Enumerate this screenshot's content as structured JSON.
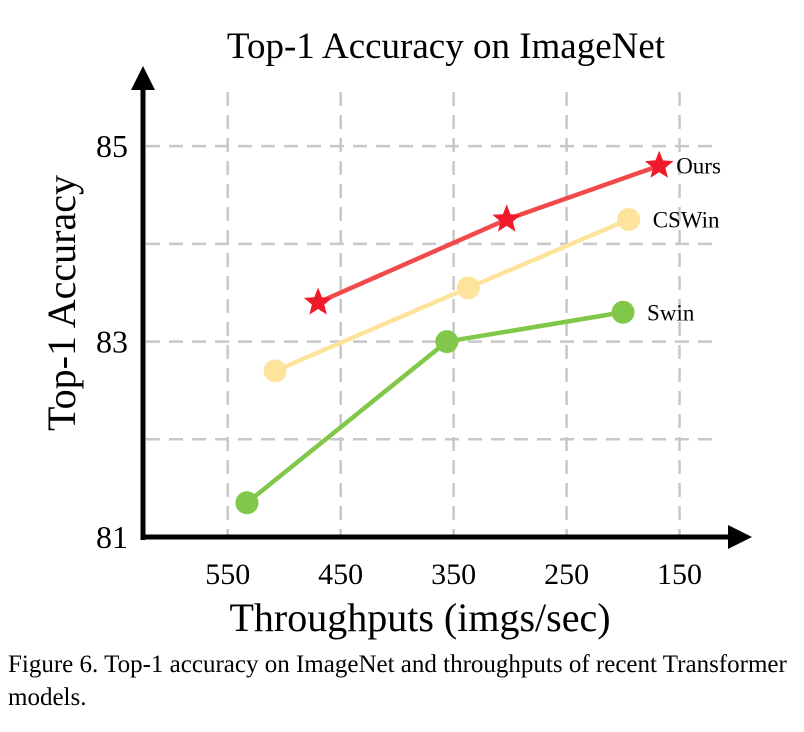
{
  "chart_data": {
    "type": "line",
    "title": "Top-1 Accuracy on ImageNet",
    "xlabel": "Throughputs (imgs/sec)",
    "ylabel": "Top-1 Accuracy",
    "x_reversed": true,
    "xlim": [
      625,
      100
    ],
    "ylim": [
      81,
      85.8
    ],
    "xticks": [
      550,
      450,
      350,
      250,
      150
    ],
    "xtick_labels": [
      "550",
      "450",
      "350",
      "250",
      "150"
    ],
    "yticks": [
      81,
      83,
      85
    ],
    "ytick_labels": [
      "81",
      "83",
      "85"
    ],
    "grid": true,
    "grid_x": [
      550,
      450,
      350,
      250,
      150
    ],
    "grid_y": [
      82,
      83,
      84,
      85
    ],
    "series": [
      {
        "name": "Ours",
        "label": "Ours",
        "color": "#f24a4a",
        "marker": "star",
        "x": [
          470,
          303,
          168
        ],
        "y": [
          83.4,
          84.25,
          84.8
        ]
      },
      {
        "name": "CSWin",
        "label": "CSWin",
        "color": "#fde39c",
        "marker": "circle",
        "x": [
          508,
          337,
          195
        ],
        "y": [
          82.7,
          83.55,
          84.25
        ]
      },
      {
        "name": "Swin",
        "label": "Swin",
        "color": "#80c74a",
        "marker": "circle",
        "x": [
          533,
          356,
          200
        ],
        "y": [
          81.35,
          83.0,
          83.3
        ]
      }
    ]
  },
  "caption": "Figure 6. Top-1 accuracy on ImageNet and throughputs of recent Transformer models."
}
